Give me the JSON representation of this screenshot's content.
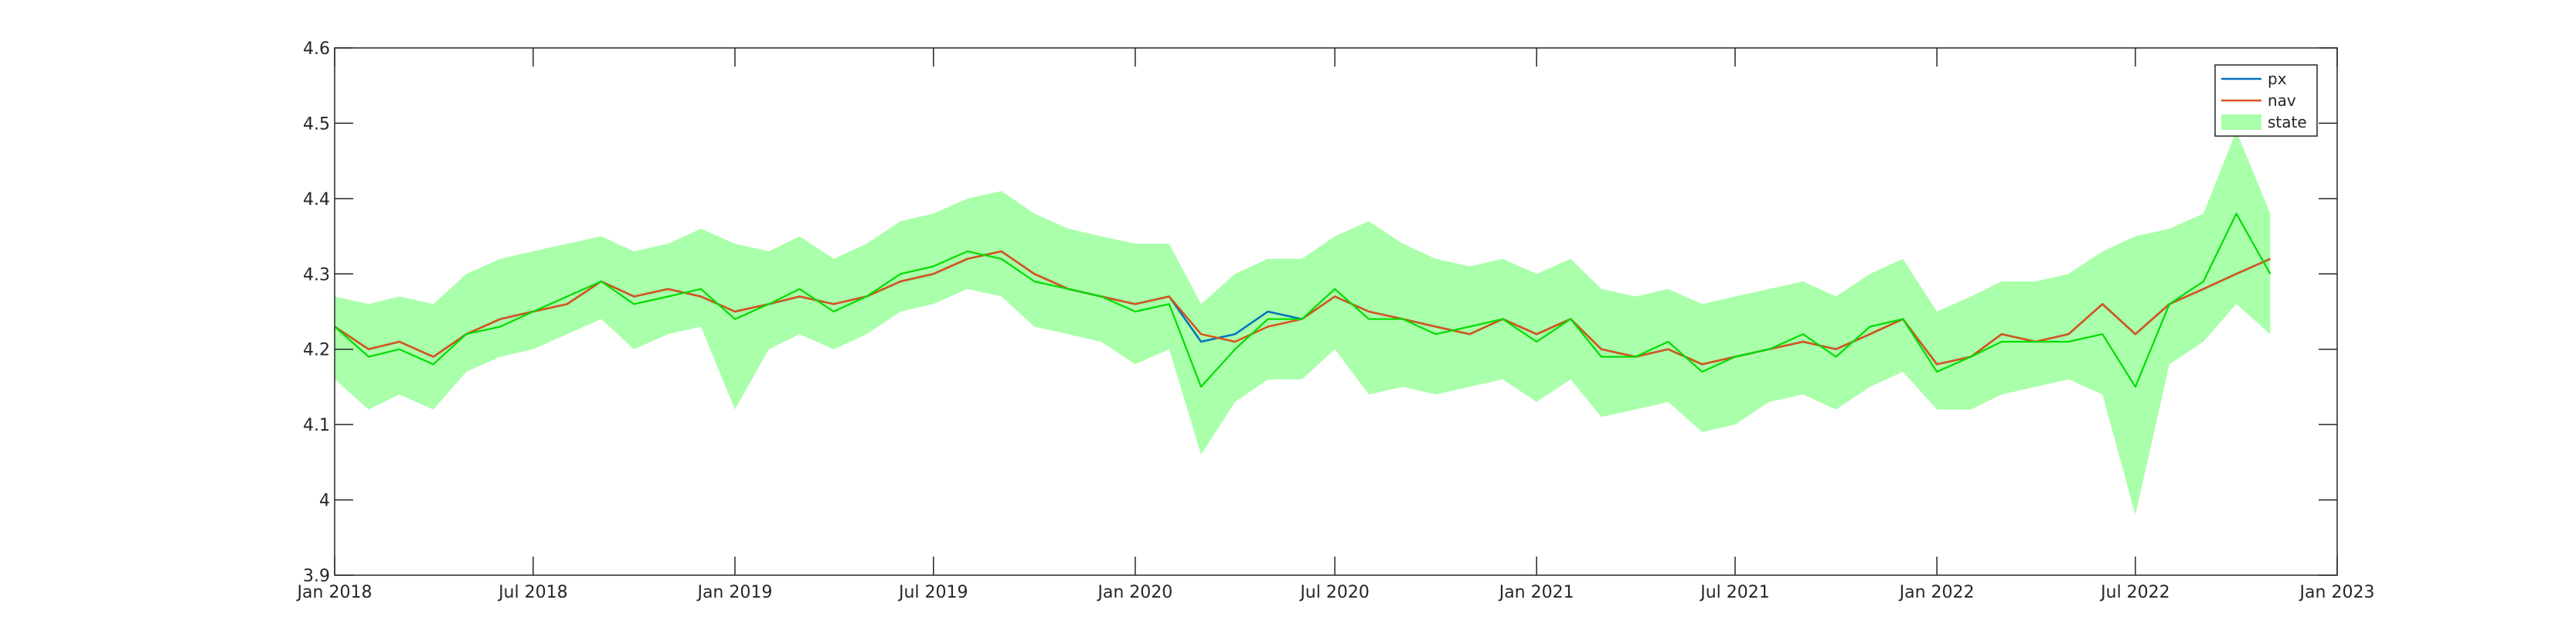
{
  "chart_data": {
    "type": "line",
    "title": "",
    "xlabel": "",
    "ylabel": "",
    "xlim": [
      "2018-01-01",
      "2023-01-01"
    ],
    "ylim": [
      3.9,
      4.6
    ],
    "x_ticks": [
      "2018-01-01",
      "2018-07-01",
      "2019-01-01",
      "2019-07-01",
      "2020-01-01",
      "2020-07-01",
      "2021-01-01",
      "2021-07-01",
      "2022-01-01",
      "2022-07-01",
      "2023-01-01"
    ],
    "x_tick_labels": [
      "Jan 2018",
      "Jul 2018",
      "Jan 2019",
      "Jul 2019",
      "Jan 2020",
      "Jul 2020",
      "Jan 2021",
      "Jul 2021",
      "Jan 2022",
      "Jul 2022",
      "Jan 2023"
    ],
    "y_ticks": [
      3.9,
      4.0,
      4.1,
      4.2,
      4.3,
      4.4,
      4.5,
      4.6
    ],
    "y_tick_labels": [
      "3.9",
      "4",
      "4.1",
      "4.2",
      "4.3",
      "4.4",
      "4.5",
      "4.6"
    ],
    "grid": false,
    "legend": {
      "position": "top-right",
      "entries": [
        {
          "label": "px",
          "color": "#0072BD",
          "kind": "line"
        },
        {
          "label": "nav",
          "color": "#D95319",
          "kind": "line"
        },
        {
          "label": "state",
          "color": "#AAFFAA",
          "kind": "band"
        }
      ]
    },
    "colors": {
      "px": "#0072BD",
      "nav": "#D95319",
      "state_line": "#00DD00",
      "state_band": "#AAFFAA"
    },
    "dates": [
      "2018-01-01",
      "2018-02-01",
      "2018-03-01",
      "2018-04-01",
      "2018-05-01",
      "2018-06-01",
      "2018-07-01",
      "2018-08-01",
      "2018-09-01",
      "2018-10-01",
      "2018-11-01",
      "2018-12-01",
      "2019-01-01",
      "2019-02-01",
      "2019-03-01",
      "2019-04-01",
      "2019-05-01",
      "2019-06-01",
      "2019-07-01",
      "2019-08-01",
      "2019-09-01",
      "2019-10-01",
      "2019-11-01",
      "2019-12-01",
      "2020-01-01",
      "2020-02-01",
      "2020-03-01",
      "2020-04-01",
      "2020-05-01",
      "2020-06-01",
      "2020-07-01",
      "2020-08-01",
      "2020-09-01",
      "2020-10-01",
      "2020-11-01",
      "2020-12-01",
      "2021-01-01",
      "2021-02-01",
      "2021-03-01",
      "2021-04-01",
      "2021-05-01",
      "2021-06-01",
      "2021-07-01",
      "2021-08-01",
      "2021-09-01",
      "2021-10-01",
      "2021-11-01",
      "2021-12-01",
      "2022-01-01",
      "2022-02-01",
      "2022-03-01",
      "2022-04-01",
      "2022-05-01",
      "2022-06-01",
      "2022-07-01",
      "2022-08-01",
      "2022-09-01",
      "2022-10-01",
      "2022-11-01"
    ],
    "series": [
      {
        "name": "px",
        "values": [
          4.23,
          4.2,
          4.21,
          4.19,
          4.22,
          4.24,
          4.25,
          4.26,
          4.29,
          4.27,
          4.28,
          4.27,
          4.25,
          4.26,
          4.27,
          4.26,
          4.27,
          4.29,
          4.3,
          4.32,
          4.33,
          4.3,
          4.28,
          4.27,
          4.26,
          4.27,
          4.21,
          4.22,
          4.25,
          4.24,
          4.27,
          4.25,
          4.24,
          4.23,
          4.22,
          4.24,
          4.22,
          4.24,
          4.2,
          4.19,
          4.2,
          4.18,
          4.19,
          4.2,
          4.21,
          4.2,
          4.22,
          4.24,
          4.18,
          4.19,
          4.22,
          4.21,
          4.22,
          4.26,
          4.22,
          4.26,
          4.28,
          4.3,
          4.32
        ]
      },
      {
        "name": "nav",
        "values": [
          4.23,
          4.2,
          4.21,
          4.19,
          4.22,
          4.24,
          4.25,
          4.26,
          4.29,
          4.27,
          4.28,
          4.27,
          4.25,
          4.26,
          4.27,
          4.26,
          4.27,
          4.29,
          4.3,
          4.32,
          4.33,
          4.3,
          4.28,
          4.27,
          4.26,
          4.27,
          4.22,
          4.21,
          4.23,
          4.24,
          4.27,
          4.25,
          4.24,
          4.23,
          4.22,
          4.24,
          4.22,
          4.24,
          4.2,
          4.19,
          4.2,
          4.18,
          4.19,
          4.2,
          4.21,
          4.2,
          4.22,
          4.24,
          4.18,
          4.19,
          4.22,
          4.21,
          4.22,
          4.26,
          4.22,
          4.26,
          4.28,
          4.3,
          4.32
        ]
      },
      {
        "name": "state",
        "values": [
          4.23,
          4.19,
          4.2,
          4.18,
          4.22,
          4.23,
          4.25,
          4.27,
          4.29,
          4.26,
          4.27,
          4.28,
          4.24,
          4.26,
          4.28,
          4.25,
          4.27,
          4.3,
          4.31,
          4.33,
          4.32,
          4.29,
          4.28,
          4.27,
          4.25,
          4.26,
          4.15,
          4.2,
          4.24,
          4.24,
          4.28,
          4.24,
          4.24,
          4.22,
          4.23,
          4.24,
          4.21,
          4.24,
          4.19,
          4.19,
          4.21,
          4.17,
          4.19,
          4.2,
          4.22,
          4.19,
          4.23,
          4.24,
          4.17,
          4.19,
          4.21,
          4.21,
          4.21,
          4.22,
          4.15,
          4.26,
          4.29,
          4.38,
          4.3
        ],
        "band_lower": [
          4.16,
          4.12,
          4.14,
          4.12,
          4.17,
          4.19,
          4.2,
          4.22,
          4.24,
          4.2,
          4.22,
          4.23,
          4.12,
          4.2,
          4.22,
          4.2,
          4.22,
          4.25,
          4.26,
          4.28,
          4.27,
          4.23,
          4.22,
          4.21,
          4.18,
          4.2,
          4.06,
          4.13,
          4.16,
          4.16,
          4.2,
          4.14,
          4.15,
          4.14,
          4.15,
          4.16,
          4.13,
          4.16,
          4.11,
          4.12,
          4.13,
          4.09,
          4.1,
          4.13,
          4.14,
          4.12,
          4.15,
          4.17,
          4.12,
          4.12,
          4.14,
          4.15,
          4.16,
          4.14,
          3.98,
          4.18,
          4.21,
          4.26,
          4.22
        ],
        "band_upper": [
          4.27,
          4.26,
          4.27,
          4.26,
          4.3,
          4.32,
          4.33,
          4.34,
          4.35,
          4.33,
          4.34,
          4.36,
          4.34,
          4.33,
          4.35,
          4.32,
          4.34,
          4.37,
          4.38,
          4.4,
          4.41,
          4.38,
          4.36,
          4.35,
          4.34,
          4.34,
          4.26,
          4.3,
          4.32,
          4.32,
          4.35,
          4.37,
          4.34,
          4.32,
          4.31,
          4.32,
          4.3,
          4.32,
          4.28,
          4.27,
          4.28,
          4.26,
          4.27,
          4.28,
          4.29,
          4.27,
          4.3,
          4.32,
          4.25,
          4.27,
          4.29,
          4.29,
          4.3,
          4.33,
          4.35,
          4.36,
          4.38,
          4.49,
          4.38
        ]
      }
    ]
  }
}
